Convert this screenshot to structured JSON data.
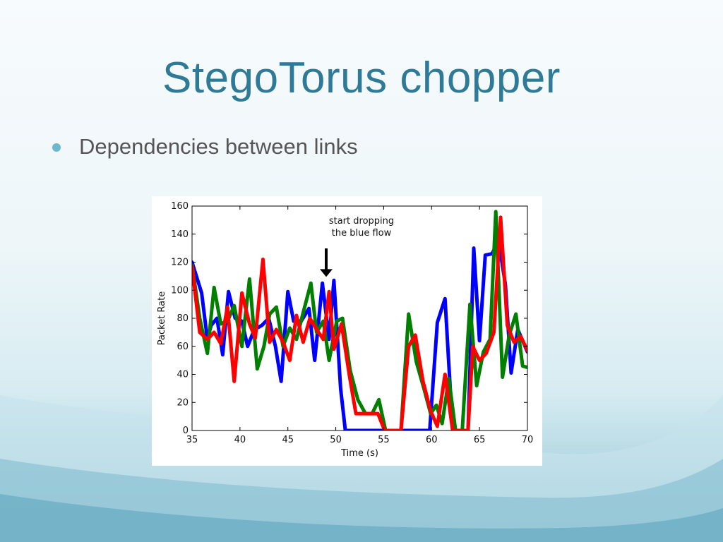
{
  "slide": {
    "title": "StegoTorus chopper",
    "bullet": "Dependencies between links"
  },
  "colors": {
    "title": "#2f7a96",
    "bullet_dot": "#6fb6cf",
    "series_blue": "#0000ff",
    "series_green": "#007f00",
    "series_red": "#ff0000"
  },
  "chart_data": {
    "type": "line",
    "xlabel": "Time (s)",
    "ylabel": "Packet Rate",
    "xlim": [
      35,
      70
    ],
    "ylim": [
      0,
      160
    ],
    "xticks": [
      35,
      40,
      45,
      50,
      55,
      60,
      65,
      70
    ],
    "yticks": [
      0,
      20,
      40,
      60,
      80,
      100,
      120,
      140,
      160
    ],
    "grid": false,
    "annotation": {
      "lines": [
        "start dropping",
        "the blue flow"
      ],
      "x": 49,
      "y": 110
    },
    "series": [
      {
        "color": "blue",
        "x": [
          35,
          36,
          36.6,
          37,
          37.6,
          38.2,
          38.8,
          39.5,
          40.2,
          40.8,
          41.5,
          42.3,
          43,
          43.7,
          44.3,
          45,
          45.6,
          46.4,
          47.2,
          47.8,
          48.6,
          49.3,
          49.8,
          50.5,
          51,
          52,
          53,
          54,
          55,
          56,
          57,
          58,
          59,
          59.8,
          60.6,
          61.4,
          62.2,
          63,
          63.8,
          64.4,
          65,
          65.6,
          66.3,
          67,
          67.7,
          68.3,
          69,
          70
        ],
        "y": [
          120,
          98,
          65,
          75,
          80,
          54,
          99,
          80,
          78,
          60,
          72,
          75,
          80,
          60,
          35,
          99,
          78,
          78,
          87,
          50,
          105,
          65,
          107,
          30,
          0,
          0,
          0,
          0,
          0,
          0,
          0,
          0,
          0,
          0,
          77,
          94,
          0,
          0,
          0,
          130,
          64,
          125,
          126,
          135,
          104,
          41,
          72,
          56
        ]
      },
      {
        "color": "green",
        "x": [
          35,
          35.8,
          36.6,
          37.3,
          38,
          38.7,
          39.4,
          40.2,
          41,
          41.8,
          42.5,
          43.1,
          43.8,
          44.5,
          45.2,
          45.9,
          46.6,
          47.4,
          48,
          48.7,
          49.3,
          50.1,
          50.7,
          51.5,
          52.3,
          53.1,
          53.8,
          54.5,
          55.2,
          56,
          56.8,
          57.6,
          58.4,
          59.2,
          59.9,
          60.5,
          61.1,
          61.8,
          62.5,
          63.2,
          64,
          64.7,
          65.4,
          66.1,
          66.7,
          67.4,
          68.1,
          68.8,
          69.5,
          70
        ],
        "y": [
          118,
          80,
          55,
          102,
          76,
          78,
          89,
          60,
          108,
          44,
          60,
          83,
          88,
          60,
          73,
          65,
          84,
          105,
          70,
          78,
          50,
          78,
          80,
          43,
          22,
          12,
          12,
          22,
          0,
          0,
          0,
          83,
          49,
          30,
          12,
          18,
          5,
          37,
          0,
          0,
          90,
          32,
          56,
          65,
          156,
          38,
          68,
          83,
          46,
          45
        ]
      },
      {
        "color": "red",
        "x": [
          35,
          35.8,
          36.6,
          37.3,
          38,
          38.7,
          39.4,
          40.2,
          41,
          41.6,
          42.4,
          43.1,
          43.8,
          44.5,
          45.2,
          45.9,
          46.6,
          47.3,
          48,
          48.7,
          49.3,
          49.8,
          50.6,
          51.4,
          52.1,
          52.9,
          53.7,
          54.4,
          55.1,
          56,
          56.8,
          57.6,
          58.3,
          59.1,
          59.9,
          60.6,
          61.4,
          62.2,
          63,
          63.8,
          64.3,
          65,
          65.7,
          66.5,
          67.2,
          67.9,
          68.6,
          69.3,
          70
        ],
        "y": [
          117,
          70,
          65,
          70,
          62,
          88,
          35,
          98,
          76,
          66,
          122,
          63,
          72,
          63,
          50,
          82,
          63,
          80,
          72,
          65,
          99,
          58,
          76,
          40,
          12,
          12,
          12,
          12,
          0,
          0,
          0,
          60,
          68,
          35,
          14,
          3,
          40,
          0,
          0,
          0,
          60,
          50,
          55,
          70,
          152,
          75,
          63,
          67,
          57
        ]
      }
    ]
  }
}
